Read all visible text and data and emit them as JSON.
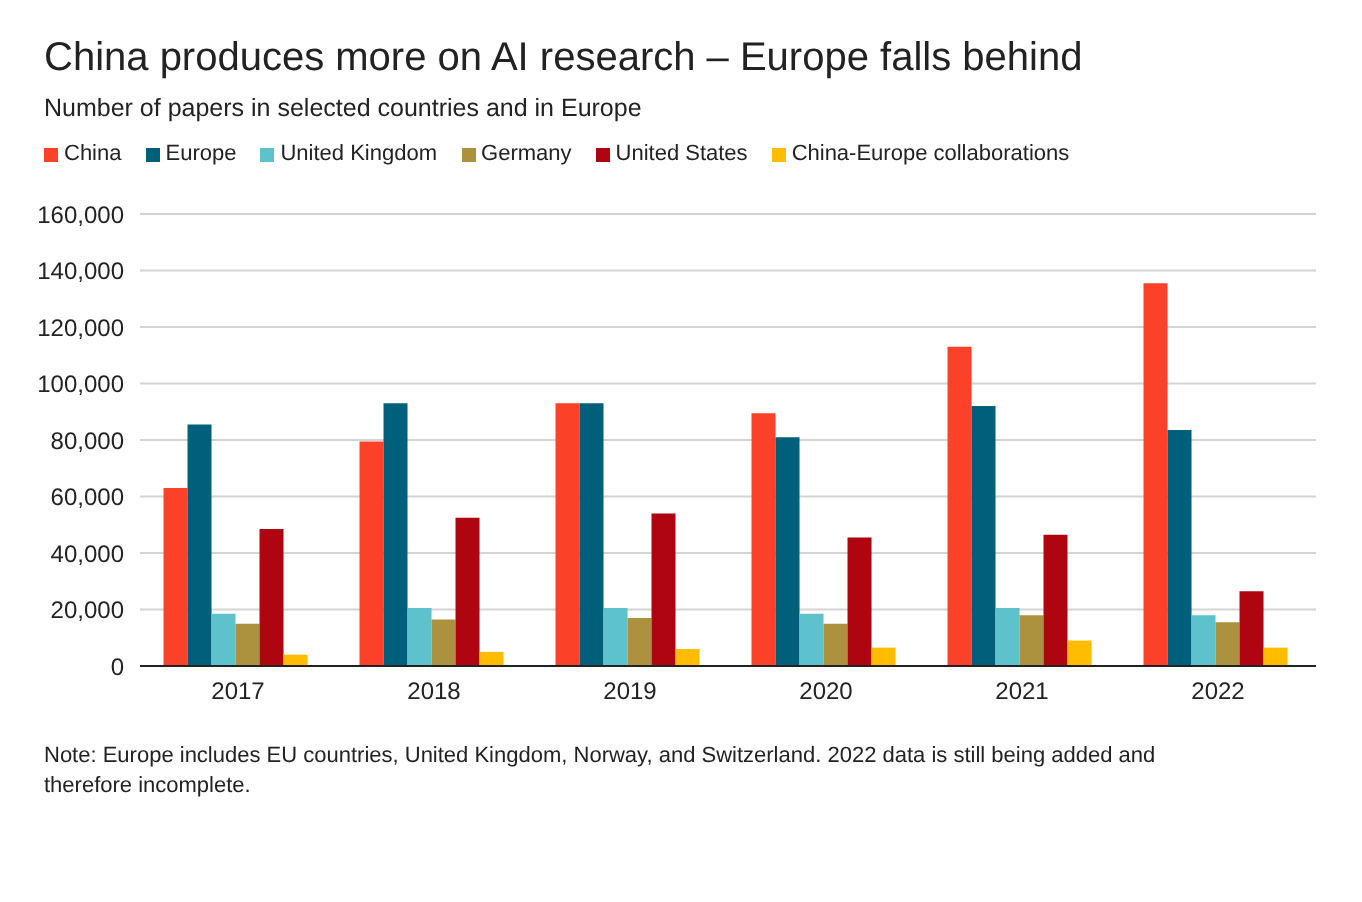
{
  "chart_data": {
    "type": "bar",
    "title": "China produces more on AI research – Europe falls behind",
    "subtitle": "Number of papers in selected countries and in Europe",
    "categories": [
      "2017",
      "2018",
      "2019",
      "2020",
      "2021",
      "2022"
    ],
    "series": [
      {
        "name": "China",
        "color": "#fb4128",
        "values": [
          63000,
          79500,
          93000,
          89500,
          113000,
          135500
        ]
      },
      {
        "name": "Europe",
        "color": "#005f7a",
        "values": [
          85500,
          93000,
          93000,
          81000,
          92000,
          83500
        ]
      },
      {
        "name": "United Kingdom",
        "color": "#5dc2cc",
        "values": [
          18500,
          20500,
          20500,
          18500,
          20500,
          18000
        ]
      },
      {
        "name": "Germany",
        "color": "#ac913e",
        "values": [
          15000,
          16500,
          17000,
          15000,
          18000,
          15500
        ]
      },
      {
        "name": "United States",
        "color": "#af0510",
        "values": [
          48500,
          52500,
          54000,
          45500,
          46500,
          26500
        ]
      },
      {
        "name": "China-Europe collaborations",
        "color": "#ffbc00",
        "values": [
          4000,
          5000,
          6000,
          6500,
          9000,
          6500
        ]
      }
    ],
    "ylim": [
      0,
      160000
    ],
    "yticks": [
      0,
      {
        "value": 20000,
        "label": "20,000"
      },
      {
        "value": 40000,
        "label": "40,000"
      },
      {
        "value": 60000,
        "label": "60,000"
      },
      {
        "value": 80000,
        "label": "80,000"
      },
      {
        "value": 100000,
        "label": "100,000"
      },
      {
        "value": 120000,
        "label": "120,000"
      },
      {
        "value": 140000,
        "label": "140,000"
      },
      {
        "value": 160000,
        "label": "160,000"
      }
    ],
    "grid": "y",
    "legend": "top",
    "annotations": [
      "Note: Europe includes EU countries, United Kingdom, Norway, and Switzerland. 2022 data is still being added and therefore incomplete."
    ]
  }
}
